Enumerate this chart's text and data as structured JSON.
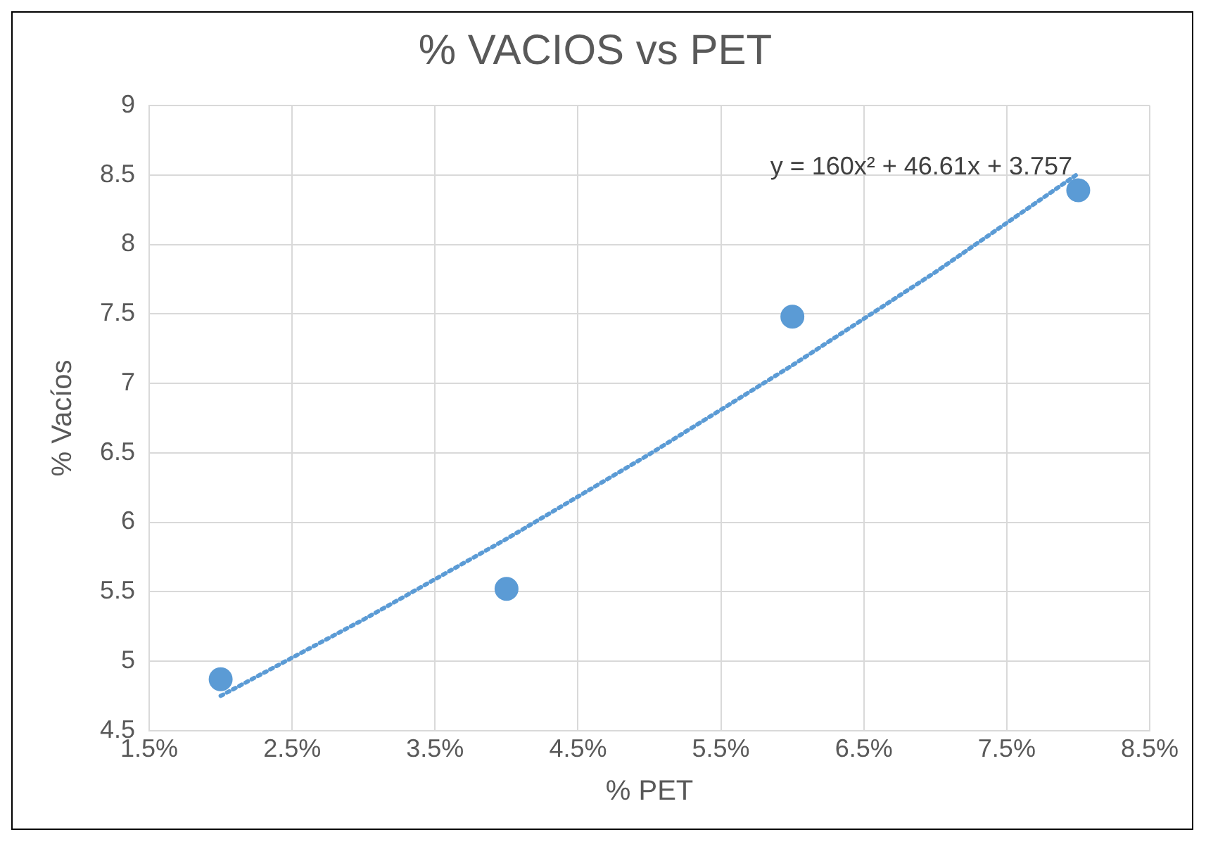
{
  "chart_data": {
    "type": "scatter",
    "title": "% VACIOS vs PET",
    "xlabel": "% PET",
    "ylabel": "% Vacíos",
    "xlim": [
      1.5,
      8.5
    ],
    "xticks": [
      {
        "value": 1.5,
        "label": "1.5%"
      },
      {
        "value": 2.5,
        "label": "2.5%"
      },
      {
        "value": 3.5,
        "label": "3.5%"
      },
      {
        "value": 4.5,
        "label": "4.5%"
      },
      {
        "value": 5.5,
        "label": "5.5%"
      },
      {
        "value": 6.5,
        "label": "6.5%"
      },
      {
        "value": 7.5,
        "label": "7.5%"
      },
      {
        "value": 8.5,
        "label": "8.5%"
      }
    ],
    "ylim": [
      4.5,
      9
    ],
    "yticks": [
      4.5,
      5,
      5.5,
      6,
      6.5,
      7,
      7.5,
      8,
      8.5,
      9
    ],
    "grid": true,
    "legend": false,
    "marker": "circle",
    "series": [
      {
        "type": "scatter",
        "color": "#5b9bd5",
        "x": [
          2,
          4,
          6,
          8
        ],
        "values": [
          4.87,
          5.52,
          7.48,
          8.39
        ]
      },
      {
        "type": "line",
        "color": "#5b9bd5",
        "line_style": "dotted",
        "marker": "none",
        "x": [
          2,
          3,
          4,
          5,
          6,
          7,
          8
        ],
        "values": [
          4.75,
          5.3,
          5.88,
          6.49,
          7.13,
          7.8,
          8.51
        ]
      }
    ],
    "annotations": [
      "y = 160x² + 46.61x + 3.757"
    ]
  }
}
